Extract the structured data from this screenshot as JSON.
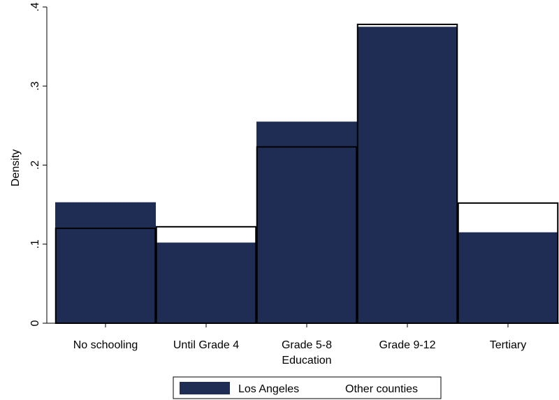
{
  "chart_data": {
    "type": "bar",
    "categories": [
      "No schooling",
      "Until Grade 4",
      "Grade 5-8",
      "Grade 9-12",
      "Tertiary"
    ],
    "series": [
      {
        "name": "Los Angeles",
        "values": [
          0.153,
          0.102,
          0.255,
          0.375,
          0.115
        ],
        "color": "#1f2d54",
        "style": "filled"
      },
      {
        "name": "Other counties",
        "values": [
          0.12,
          0.122,
          0.223,
          0.378,
          0.152
        ],
        "color": "#000000",
        "style": "outline"
      }
    ],
    "title": "",
    "xlabel": "Education",
    "ylabel": "Density",
    "ylim": [
      0,
      0.4
    ],
    "yticks": [
      0,
      0.1,
      0.2,
      0.3,
      0.4
    ],
    "ytick_labels": [
      "0",
      ".1",
      ".2",
      ".3",
      ".4"
    ],
    "grid": false,
    "legend_position": "bottom"
  }
}
